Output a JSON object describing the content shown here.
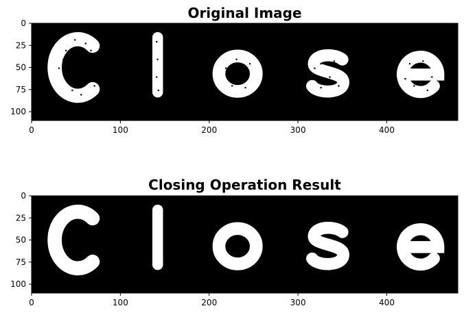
{
  "chart_data": [
    {
      "type": "image",
      "title": "Original Image",
      "image_width": 480,
      "image_height": 110,
      "xlim": [
        0,
        480
      ],
      "ylim": [
        110,
        0
      ],
      "xticks": [
        0,
        100,
        200,
        300,
        400
      ],
      "yticks": [
        0,
        25,
        50,
        75,
        100
      ],
      "xlabel": "",
      "ylabel": "",
      "text_in_image": "Close",
      "image_colors": {
        "foreground": "#ffffff",
        "background": "#000000"
      },
      "speckled": true
    },
    {
      "type": "image",
      "title": "Closing Operation Result",
      "image_width": 480,
      "image_height": 110,
      "xlim": [
        0,
        480
      ],
      "ylim": [
        110,
        0
      ],
      "xticks": [
        0,
        100,
        200,
        300,
        400
      ],
      "yticks": [
        0,
        25,
        50,
        75,
        100
      ],
      "xlabel": "",
      "ylabel": "",
      "text_in_image": "Close",
      "image_colors": {
        "foreground": "#ffffff",
        "background": "#000000"
      },
      "speckled": false
    }
  ]
}
